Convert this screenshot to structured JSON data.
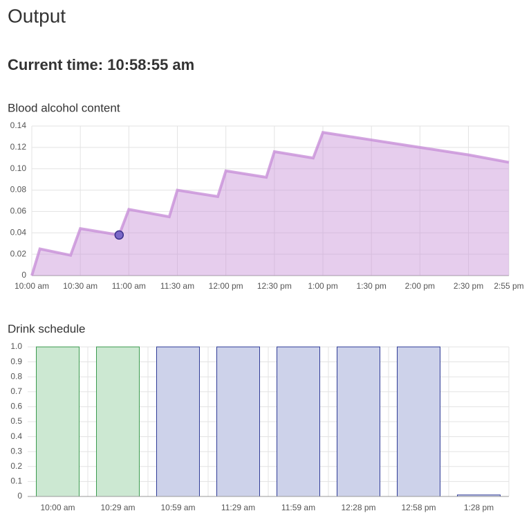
{
  "header": {
    "title": "Output",
    "current_time": "Current time: 10:58:55 am"
  },
  "chart_data": [
    {
      "type": "area",
      "title": "Blood alcohol content",
      "color": "#c890d8",
      "x": [
        "10:00",
        "10:05",
        "10:24",
        "10:30",
        "10:54",
        "11:00",
        "11:25",
        "11:30",
        "11:55",
        "12:00",
        "12:25",
        "12:30",
        "12:54",
        "13:00",
        "13:30",
        "14:00",
        "14:30",
        "14:55"
      ],
      "values": [
        0,
        0.025,
        0.019,
        0.044,
        0.038,
        0.062,
        0.055,
        0.08,
        0.074,
        0.098,
        0.092,
        0.116,
        0.11,
        0.134,
        0.127,
        0.12,
        0.113,
        0.106
      ],
      "highlight": {
        "x": "10:54",
        "y": 0.038,
        "color": "#7b68c8"
      },
      "xlim": [
        "10:00",
        "14:55"
      ],
      "xticks": [
        {
          "value": "10:00",
          "label": "10:00 am"
        },
        {
          "value": "10:30",
          "label": "10:30 am"
        },
        {
          "value": "11:00",
          "label": "11:00 am"
        },
        {
          "value": "11:30",
          "label": "11:30 am"
        },
        {
          "value": "12:00",
          "label": "12:00 pm"
        },
        {
          "value": "12:30",
          "label": "12:30 pm"
        },
        {
          "value": "13:00",
          "label": "1:00 pm"
        },
        {
          "value": "13:30",
          "label": "1:30 pm"
        },
        {
          "value": "14:00",
          "label": "2:00 pm"
        },
        {
          "value": "14:30",
          "label": "2:30 pm"
        },
        {
          "value": "14:55",
          "label": "2:55 pm"
        }
      ],
      "ylim": [
        0,
        0.14
      ],
      "yticks": [
        0,
        {
          "value": 0.02,
          "label": "0.02"
        },
        {
          "value": 0.04,
          "label": "0.04"
        },
        {
          "value": 0.06,
          "label": "0.06"
        },
        {
          "value": 0.08,
          "label": "0.08"
        },
        {
          "value": 0.1,
          "label": "0.10"
        },
        {
          "value": 0.12,
          "label": "0.12"
        },
        {
          "value": 0.14,
          "label": "0.14"
        }
      ],
      "grid": true
    },
    {
      "type": "bar",
      "title": "Drink schedule",
      "categories": [
        "10:00 am",
        "10:29 am",
        "10:59 am",
        "11:29 am",
        "11:59 am",
        "12:28 pm",
        "12:58 pm",
        "1:28 pm"
      ],
      "values": [
        1,
        1,
        1,
        1,
        1,
        1,
        1,
        0.01
      ],
      "colors": [
        "green",
        "green",
        "blue",
        "blue",
        "blue",
        "blue",
        "blue",
        "blue"
      ],
      "ylim": [
        0,
        1
      ],
      "yticks": [
        0,
        0.1,
        0.2,
        0.3,
        0.4,
        0.5,
        0.6,
        0.7,
        0.8,
        0.9,
        {
          "value": 1,
          "label": "1.0"
        }
      ],
      "grid": true
    }
  ]
}
